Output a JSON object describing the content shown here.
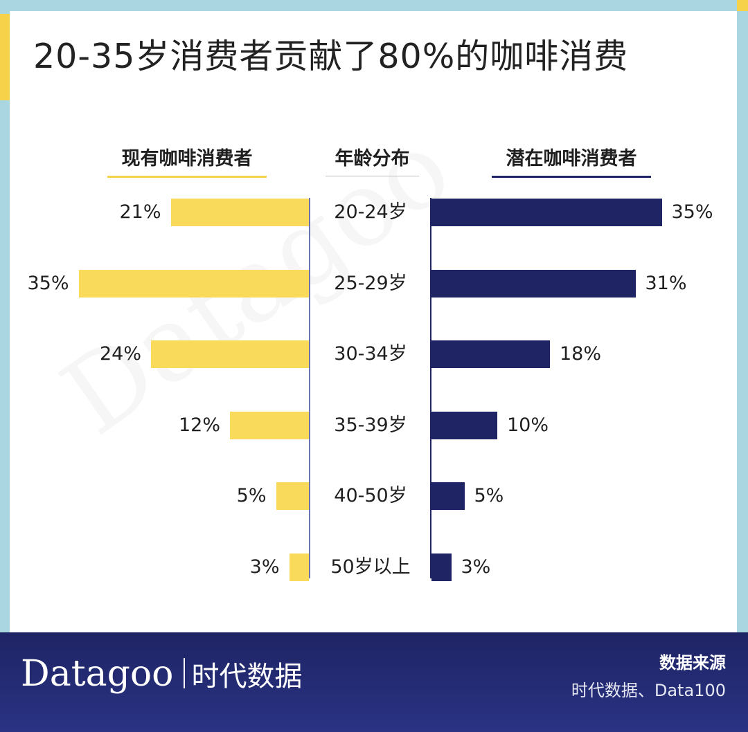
{
  "title": "20-35岁消费者贡献了80%的咖啡消费",
  "watermark": "Datagoo",
  "colors": {
    "existing": "#f9da5a",
    "potential": "#1e2464",
    "frame": "#a9d6e0"
  },
  "chart_data": {
    "type": "bar",
    "categories": [
      "20-24岁",
      "25-29岁",
      "30-34岁",
      "35-39岁",
      "40-50岁",
      "50岁以上"
    ],
    "series": [
      {
        "name": "现有咖啡消费者",
        "values": [
          21,
          35,
          24,
          12,
          5,
          3
        ]
      },
      {
        "name": "潜在咖啡消费者",
        "values": [
          35,
          31,
          18,
          10,
          5,
          3
        ]
      }
    ],
    "labels": {
      "existing": [
        "21%",
        "35%",
        "24%",
        "12%",
        "5%",
        "3%"
      ],
      "potential": [
        "35%",
        "31%",
        "18%",
        "10%",
        "5%",
        "3%"
      ]
    },
    "center_label": "年龄分布",
    "unit": "%",
    "grid": false
  },
  "footer": {
    "brand_en": "Datagoo",
    "brand_cn": "时代数据",
    "source_title": "数据来源",
    "source_text": "时代数据、Data100"
  }
}
